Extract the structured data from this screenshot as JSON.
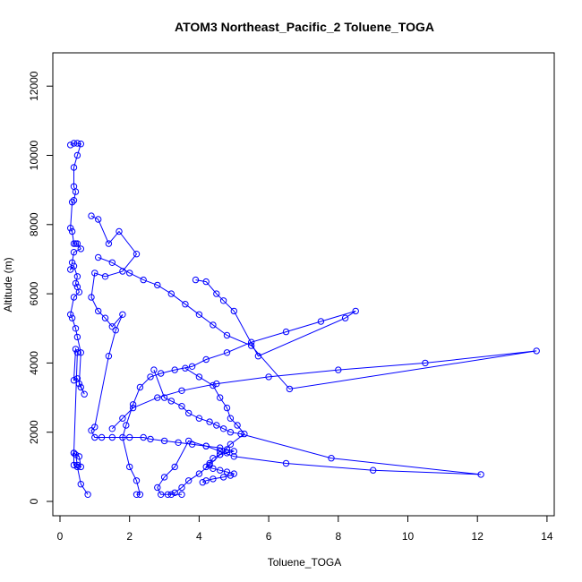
{
  "chart_data": {
    "type": "line",
    "title": "ATOM3 Northeast_Pacific_2 Toluene_TOGA",
    "xlabel": "Toluene_TOGA",
    "ylabel": "Altitude (m)",
    "xlim": [
      0,
      14
    ],
    "ylim": [
      0,
      12000
    ],
    "xticks": [
      "0",
      "2",
      "4",
      "6",
      "8",
      "10",
      "12",
      "14"
    ],
    "yticks": [
      "0",
      "2000",
      "4000",
      "6000",
      "8000",
      "10000",
      "12000"
    ],
    "grid": false,
    "legend": "none",
    "color": "#0000ff",
    "marker": "open-circle",
    "series": [
      {
        "x": [
          0.3,
          0.4,
          0.5,
          0.6,
          0.5,
          0.4,
          0.4,
          0.45,
          0.4,
          0.35,
          0.3,
          0.35,
          0.4,
          0.45,
          0.5,
          0.6,
          0.4,
          0.35,
          0.3,
          0.4,
          0.5,
          0.45,
          0.5,
          0.55,
          0.4,
          0.3,
          0.35,
          0.45,
          0.5,
          0.6,
          0.55,
          0.6,
          0.7,
          0.5,
          0.4,
          0.45,
          0.5,
          0.4,
          0.45,
          0.5,
          0.6,
          0.55,
          0.4,
          0.4,
          0.5,
          0.6,
          0.8
        ],
        "y": [
          10300,
          10350,
          10350,
          10330,
          10000,
          9650,
          9100,
          8950,
          8700,
          8650,
          7900,
          7800,
          7450,
          7450,
          7450,
          7300,
          7200,
          6900,
          6700,
          6800,
          6500,
          6300,
          6200,
          6050,
          5900,
          5400,
          5300,
          5000,
          4750,
          4300,
          3400,
          3300,
          3100,
          3550,
          3500,
          4400,
          4300,
          1400,
          1350,
          1050,
          1000,
          1300,
          1400,
          1050,
          1000,
          500,
          200
        ]
      },
      {
        "x": [
          0.9,
          1.1,
          1.4,
          1.7,
          2.2,
          1.8,
          1.3,
          1.0,
          0.9,
          1.1,
          1.3,
          1.5,
          1.8,
          1.6,
          1.4,
          1.0,
          0.9,
          1.0,
          1.2,
          1.5,
          2.0,
          2.4,
          2.6,
          3.0,
          3.4,
          3.8,
          4.2,
          4.6,
          4.8,
          5.0,
          4.8,
          4.6,
          4.4,
          4.3,
          4.2,
          4.4,
          4.6,
          4.8,
          5.0,
          4.9,
          4.7,
          4.4,
          4.2,
          4.1
        ],
        "y": [
          8250,
          8150,
          7450,
          7800,
          7150,
          6650,
          6500,
          6600,
          5900,
          5500,
          5300,
          5050,
          5400,
          4950,
          4200,
          2150,
          2050,
          1850,
          1850,
          1850,
          1850,
          1850,
          1800,
          1750,
          1700,
          1650,
          1600,
          1550,
          1500,
          1450,
          1400,
          1350,
          1250,
          1100,
          1000,
          950,
          900,
          850,
          800,
          750,
          700,
          650,
          600,
          550
        ]
      },
      {
        "x": [
          3.9,
          4.2,
          4.5,
          4.7,
          5.0,
          5.7,
          8.2,
          8.5,
          7.5,
          6.5,
          5.5,
          4.8,
          4.2,
          3.8,
          3.3,
          2.9,
          2.6,
          2.3,
          2.1,
          1.9,
          1.8,
          2.0,
          2.2,
          2.3,
          2.2
        ],
        "y": [
          6400,
          6350,
          6000,
          5800,
          5500,
          4200,
          5300,
          5500,
          5200,
          4900,
          4600,
          4300,
          4100,
          3900,
          3800,
          3700,
          3600,
          3300,
          2800,
          2200,
          1850,
          1000,
          600,
          200,
          200
        ]
      },
      {
        "x": [
          1.1,
          1.5,
          2.0,
          2.4,
          2.8,
          3.2,
          3.6,
          4.0,
          4.4,
          4.8,
          5.5,
          6.6,
          13.7,
          10.5,
          8.0,
          6.0,
          4.5,
          3.5,
          2.8,
          2.1,
          1.8,
          1.5
        ],
        "y": [
          7050,
          6900,
          6600,
          6400,
          6250,
          6000,
          5700,
          5400,
          5100,
          4800,
          4500,
          3250,
          4350,
          4000,
          3800,
          3600,
          3400,
          3200,
          3000,
          2700,
          2400,
          2100
        ]
      },
      {
        "x": [
          2.7,
          3.0,
          3.2,
          3.5,
          3.7,
          4.0,
          4.3,
          4.5,
          4.7,
          4.9,
          5.2,
          7.8,
          12.1,
          9.0,
          6.5,
          5.0,
          4.6,
          4.2,
          3.7,
          3.3,
          3.0,
          2.8,
          2.9,
          3.2,
          3.5
        ],
        "y": [
          3800,
          3000,
          2900,
          2750,
          2550,
          2400,
          2300,
          2200,
          2100,
          2000,
          1950,
          1250,
          780,
          900,
          1100,
          1300,
          1450,
          1600,
          1750,
          1000,
          700,
          400,
          200,
          200,
          200
        ]
      },
      {
        "x": [
          3.6,
          4.0,
          4.4,
          4.6,
          4.8,
          4.9,
          5.1,
          5.3,
          4.9,
          4.6,
          4.3,
          4.0,
          3.7,
          3.5,
          3.3,
          3.1
        ],
        "y": [
          3850,
          3600,
          3350,
          3000,
          2700,
          2400,
          2200,
          1950,
          1650,
          1350,
          1050,
          800,
          600,
          400,
          250,
          200
        ]
      }
    ]
  }
}
